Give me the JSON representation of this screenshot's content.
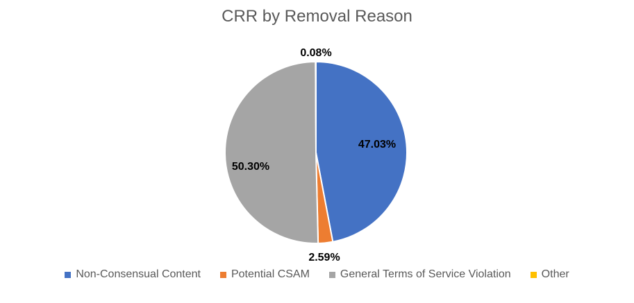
{
  "chart_data": {
    "type": "pie",
    "title": "CRR by Removal Reason",
    "categories": [
      "Non-Consensual Content",
      "Potential CSAM",
      "General Terms of Service Violation",
      "Other"
    ],
    "values": [
      47.03,
      2.59,
      50.3,
      0.08
    ],
    "labels": [
      "47.03%",
      "2.59%",
      "50.30%",
      "0.08%"
    ],
    "colors": [
      "#4472C4",
      "#ED7D31",
      "#A5A5A5",
      "#FFC000"
    ],
    "legend_position": "bottom",
    "start_angle": "12 o'clock, clockwise"
  }
}
